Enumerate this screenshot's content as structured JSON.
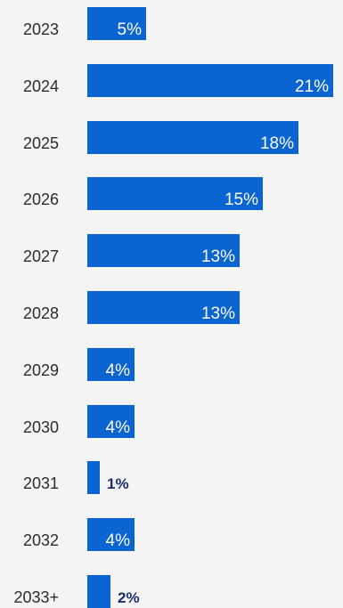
{
  "chart_data": {
    "type": "bar",
    "orientation": "horizontal",
    "categories": [
      "2023",
      "2024",
      "2025",
      "2026",
      "2027",
      "2028",
      "2029",
      "2030",
      "2031",
      "2032",
      "2033+"
    ],
    "values": [
      5,
      21,
      18,
      15,
      13,
      13,
      4,
      4,
      1,
      4,
      2
    ],
    "value_labels": [
      "5%",
      "21%",
      "18%",
      "15%",
      "13%",
      "13%",
      "4%",
      "4%",
      "1%",
      "4%",
      "2%"
    ],
    "title": "",
    "xlabel": "",
    "ylabel": "",
    "xlim": [
      0,
      21
    ],
    "grid": false,
    "legend": "none",
    "colors": {
      "bar": "#0a64d2",
      "background": "#f4f4f4",
      "label_inside": "#ffffff",
      "label_outside": "#1b2f6b",
      "category_text": "#2b2b2b"
    }
  }
}
